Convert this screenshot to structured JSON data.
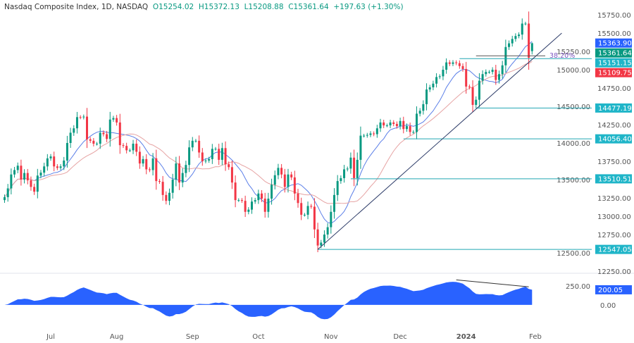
{
  "header": {
    "symbol": "Nasdaq Composite Index, 1D, NASDAQ",
    "open": "O15254.02",
    "high": "H15372.13",
    "low": "L15208.88",
    "close": "C15361.64",
    "change": "+197.63 (+1.30%)"
  },
  "chart_data": {
    "type": "candlestick",
    "title": "Nasdaq Composite Index, 1D, NASDAQ",
    "ylim": [
      12250,
      15750
    ],
    "y_ticks": [
      "15750.00",
      "15500.00",
      "15250.00",
      "15000.00",
      "14750.00",
      "14500.00",
      "14250.00",
      "14000.00",
      "13750.00",
      "13500.00",
      "13250.00",
      "13000.00",
      "12750.00",
      "12500.00",
      "12250.00"
    ],
    "x_labels": [
      {
        "label": "Jul",
        "index": 14
      },
      {
        "label": "Aug",
        "index": 34
      },
      {
        "label": "Sep",
        "index": 57
      },
      {
        "label": "Oct",
        "index": 77
      },
      {
        "label": "Nov",
        "index": 99
      },
      {
        "label": "Dec",
        "index": 120
      },
      {
        "label": "2024",
        "index": 140
      },
      {
        "label": "Feb",
        "index": 161
      }
    ],
    "closes": [
      13260,
      13380,
      13570,
      13630,
      13690,
      13500,
      13590,
      13490,
      13400,
      13335,
      13555,
      13595,
      13680,
      13790,
      13816,
      13680,
      13660,
      13680,
      13760,
      14000,
      14140,
      14200,
      14353,
      14350,
      14360,
      14050,
      14030,
      13990,
      13990,
      14140,
      14120,
      14055,
      14320,
      14340,
      14280,
      13970,
      13960,
      13900,
      13900,
      13990,
      13880,
      13720,
      13780,
      13640,
      13630,
      13790,
      13480,
      13470,
      13290,
      13210,
      13320,
      13500,
      13720,
      13460,
      13590,
      13700,
      13940,
      14030,
      14030,
      13870,
      13750,
      13760,
      13780,
      13920,
      13920,
      13770,
      13930,
      13710,
      13670,
      13460,
      13220,
      13220,
      13210,
      13060,
      13090,
      13200,
      13220,
      13310,
      13240,
      13060,
      13240,
      13430,
      13560,
      13660,
      13570,
      13400,
      13570,
      13530,
      13310,
      13180,
      13020,
      13020,
      13140,
      13130,
      12820,
      12600,
      12640,
      12750,
      12850,
      13060,
      13290,
      13480,
      13520,
      13640,
      13650,
      13800,
      13520,
      13770,
      14100,
      14100,
      14110,
      14130,
      14120,
      14200,
      14280,
      14240,
      14240,
      14280,
      14260,
      14230,
      14300,
      14190,
      14230,
      14150,
      14150,
      14400,
      14440,
      14530,
      14730,
      14760,
      14810,
      14900,
      14910,
      15000,
      15100,
      15080,
      15100,
      15090,
      15050,
      15010,
      14770,
      14760,
      14520,
      14590,
      14850,
      14940,
      14970,
      14970,
      15000,
      14860,
      14940,
      15060,
      15310,
      15360,
      15420,
      15460,
      15480,
      15630,
      15630,
      15164,
      15361.64
    ],
    "last_open": 15254.02,
    "last_high": 15372.13,
    "last_low": 15208.88,
    "moving_averages": [
      {
        "period": 10,
        "color": "#5b7fe8",
        "last_value": "15363.90"
      },
      {
        "period": 20,
        "color": "#e6a3a3",
        "last_value": "15109.75"
      }
    ],
    "last_price_label": "15361.64",
    "horizontal_levels": [
      {
        "value": "15151.15",
        "from_index": 138
      },
      {
        "value": "14477.19",
        "from_index": 143
      },
      {
        "value": "14056.40",
        "from_index": 121
      },
      {
        "value": "13510.51",
        "from_index": 105
      },
      {
        "value": "12547.05",
        "from_index": 95
      }
    ],
    "trendline": {
      "from": {
        "index": 95,
        "value": 12547.05
      },
      "to": {
        "index": 169,
        "value": 15500
      }
    },
    "fib_level": {
      "label": "38.20%",
      "value": 15190,
      "from_index": 143,
      "to_index": 164
    },
    "oscillator": {
      "type": "area",
      "ticks": [
        "250.00",
        "0.00"
      ],
      "ylim": [
        -300,
        400
      ],
      "last_value": "200.05",
      "divergence_line": {
        "from_index": 137,
        "to_index": 159
      }
    },
    "colors": {
      "up": "#089981",
      "down": "#f23645",
      "level": "#22a6b3",
      "trend": "#2b3a67",
      "oscillator": "#2962ff",
      "fib": "#7e57c2"
    }
  }
}
